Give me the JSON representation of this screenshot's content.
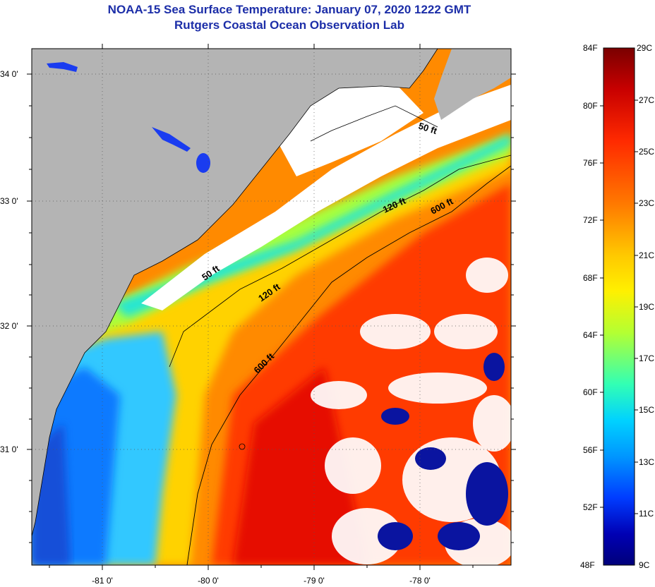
{
  "title": {
    "line1": "NOAA-15 Sea Surface Temperature:  January 07, 2020 1222 GMT",
    "line2": "Rutgers Coastal Ocean Observation Lab"
  },
  "map": {
    "lat_labels": [
      "34 0'",
      "33 0'",
      "32 0'",
      "31 0'"
    ],
    "lon_labels": [
      "-81 0'",
      "-80 0'",
      "-79 0'",
      "-78 0'"
    ],
    "isobaths": [
      "50 ft",
      "50 ft",
      "120 ft",
      "120 ft",
      "600 ft",
      "600 ft"
    ],
    "colors": {
      "land": "#b4b4b4",
      "cloud": "#ffffff",
      "frame": "#000000"
    }
  },
  "colorbar": {
    "fahrenheit": [
      "84F",
      "80F",
      "76F",
      "72F",
      "68F",
      "64F",
      "60F",
      "56F",
      "52F",
      "48F"
    ],
    "celsius": [
      "29C",
      "27C",
      "25C",
      "23C",
      "21C",
      "19C",
      "17C",
      "15C",
      "13C",
      "11C",
      "9C"
    ],
    "range_f": [
      48,
      84
    ],
    "range_c": [
      9,
      29
    ],
    "gradient": [
      "#7a0000",
      "#c80000",
      "#ff2a00",
      "#ff7800",
      "#ffc800",
      "#fff000",
      "#b4ff32",
      "#32ffb4",
      "#00d2ff",
      "#0096ff",
      "#003cff",
      "#0000b4",
      "#00007a"
    ]
  }
}
